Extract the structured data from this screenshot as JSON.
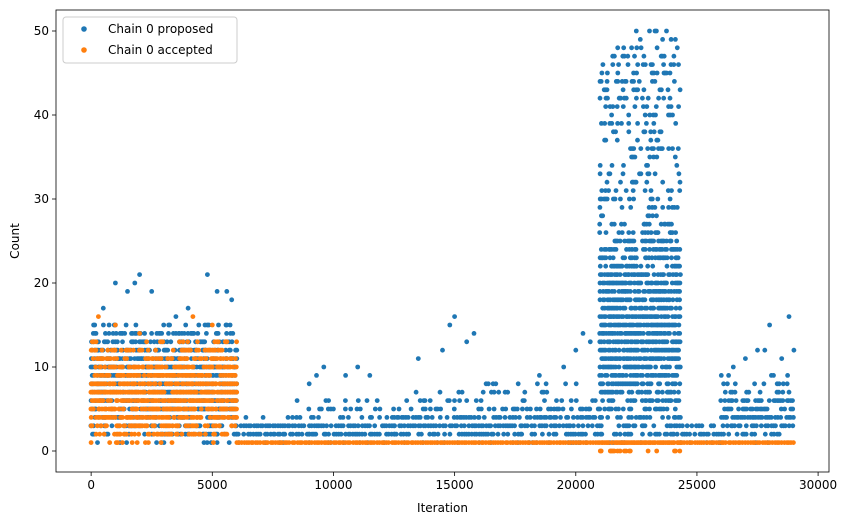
{
  "chart_data": {
    "type": "scatter",
    "title": "",
    "xlabel": "Iteration",
    "ylabel": "Count",
    "xlim": [
      -1450,
      30450
    ],
    "ylim": [
      -2.5,
      52.5
    ],
    "xticks": [
      0,
      5000,
      10000,
      15000,
      20000,
      25000,
      30000
    ],
    "yticks": [
      0,
      10,
      20,
      30,
      40,
      50
    ],
    "grid": false,
    "legend": {
      "placement": "top-left"
    },
    "series": [
      {
        "name": "Chain 0 proposed",
        "color": "#1f77b4",
        "segments": [
          {
            "x_range": [
              0,
              6000
            ],
            "y_min": 1,
            "y_max": 15,
            "y_mode": 8,
            "step": 50,
            "outliers": [
              [
                500,
                17
              ],
              [
                1000,
                20
              ],
              [
                1500,
                19
              ],
              [
                1800,
                20
              ],
              [
                2000,
                21
              ],
              [
                2500,
                19
              ],
              [
                3500,
                16
              ],
              [
                4000,
                17
              ],
              [
                4800,
                21
              ],
              [
                5200,
                19
              ],
              [
                5600,
                19
              ],
              [
                5800,
                18
              ]
            ]
          },
          {
            "x_range": [
              6000,
              9000
            ],
            "y_min": 1,
            "y_max": 4,
            "y_mode": 2,
            "step": 100,
            "outliers": [
              [
                8500,
                6
              ],
              [
                9000,
                8
              ]
            ]
          },
          {
            "x_range": [
              9000,
              12500
            ],
            "y_min": 1,
            "y_max": 6,
            "y_mode": 2,
            "step": 100,
            "outliers": [
              [
                9300,
                9
              ],
              [
                9600,
                10
              ],
              [
                10500,
                9
              ],
              [
                11000,
                10
              ],
              [
                11500,
                9
              ]
            ]
          },
          {
            "x_range": [
              12500,
              16000
            ],
            "y_min": 1,
            "y_max": 7,
            "y_mode": 3,
            "step": 100,
            "outliers": [
              [
                13500,
                11
              ],
              [
                14500,
                12
              ],
              [
                14800,
                15
              ],
              [
                15000,
                16
              ],
              [
                15500,
                13
              ],
              [
                15800,
                14
              ]
            ]
          },
          {
            "x_range": [
              16000,
              21000
            ],
            "y_min": 1,
            "y_max": 8,
            "y_mode": 3,
            "step": 100,
            "outliers": [
              [
                18500,
                9
              ],
              [
                19500,
                10
              ],
              [
                20000,
                12
              ],
              [
                20300,
                14
              ],
              [
                20600,
                13
              ]
            ]
          },
          {
            "x_range": [
              21000,
              24300
            ],
            "y_min": 1,
            "y_max": 50,
            "y_mode": 15,
            "step": 60,
            "outliers": [
              [
                21000,
                42
              ]
            ]
          },
          {
            "x_range": [
              24300,
              26000
            ],
            "y_min": 1,
            "y_max": 3,
            "y_mode": 2,
            "step": 100,
            "outliers": []
          },
          {
            "x_range": [
              26000,
              29000
            ],
            "y_min": 1,
            "y_max": 9,
            "y_mode": 4,
            "step": 80,
            "outliers": [
              [
                26500,
                10
              ],
              [
                27000,
                11
              ],
              [
                27500,
                12
              ],
              [
                27800,
                12
              ],
              [
                28000,
                15
              ],
              [
                28500,
                11
              ],
              [
                28800,
                16
              ],
              [
                29000,
                12
              ]
            ]
          }
        ]
      },
      {
        "name": "Chain 0 accepted",
        "color": "#ff7f0e",
        "segments": [
          {
            "x_range": [
              0,
              6000
            ],
            "y_min": 1,
            "y_max": 13,
            "y_mode": 7,
            "step": 50,
            "outliers": [
              [
                0,
                1
              ],
              [
                300,
                16
              ],
              [
                1000,
                15
              ],
              [
                2000,
                14
              ],
              [
                4200,
                16
              ],
              [
                5000,
                15
              ]
            ]
          },
          {
            "x_range": [
              6000,
              21000
            ],
            "y_min": 1,
            "y_max": 1,
            "y_mode": 1,
            "step": 100,
            "outliers": []
          },
          {
            "x_range": [
              21000,
              24300
            ],
            "y_min": 0,
            "y_max": 1,
            "y_mode": 1,
            "step": 60,
            "outliers": []
          },
          {
            "x_range": [
              24300,
              29000
            ],
            "y_min": 1,
            "y_max": 1,
            "y_mode": 1,
            "step": 100,
            "outliers": []
          }
        ]
      }
    ]
  }
}
